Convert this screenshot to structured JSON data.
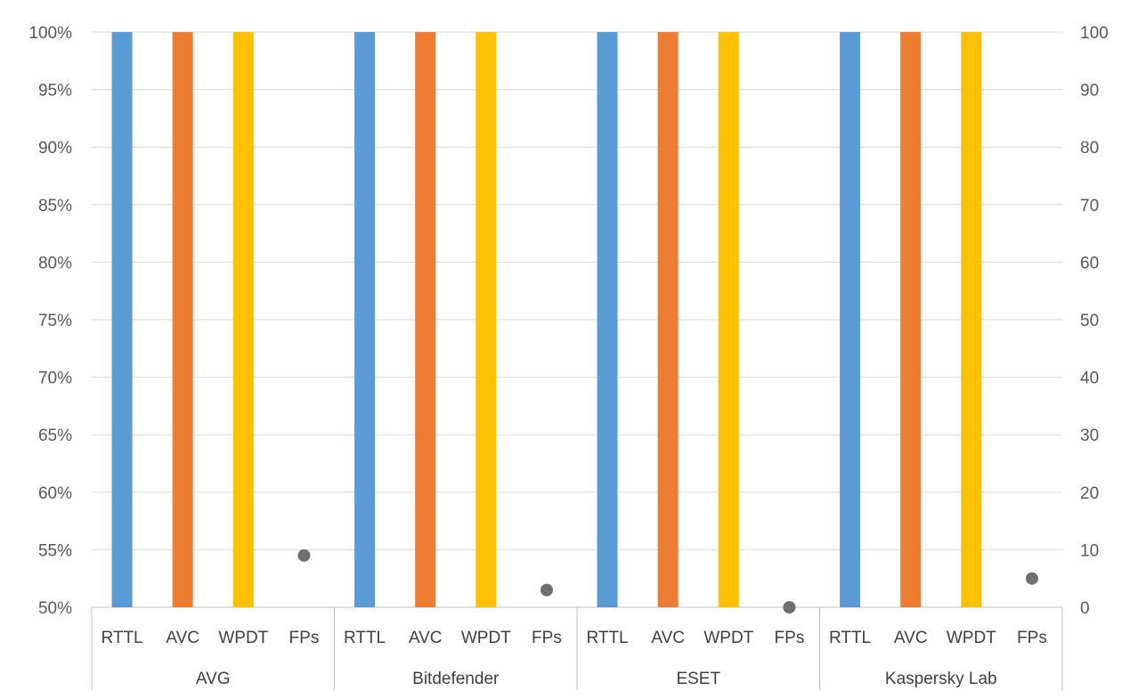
{
  "chart_data": {
    "type": "bar",
    "title": "",
    "xlabel": "",
    "ylabel": "",
    "groups": [
      "AVG",
      "Bitdefender",
      "ESET",
      "Kaspersky Lab"
    ],
    "categories": [
      "RTTL",
      "AVC",
      "WPDT",
      "FPs"
    ],
    "series": [
      {
        "category": "RTTL",
        "axis": "left",
        "kind": "bar",
        "color": "#5B9BD5",
        "values": [
          100,
          100,
          100,
          100
        ]
      },
      {
        "category": "AVC",
        "axis": "left",
        "kind": "bar",
        "color": "#ED7D31",
        "values": [
          100,
          100,
          100,
          100
        ]
      },
      {
        "category": "WPDT",
        "axis": "left",
        "kind": "bar",
        "color": "#FFC000",
        "values": [
          100,
          100,
          100,
          100
        ]
      },
      {
        "category": "FPs",
        "axis": "right",
        "kind": "scatter",
        "color": "#6E6E6E",
        "values": [
          9,
          3,
          0,
          5
        ]
      }
    ],
    "y_left": {
      "min": 50,
      "max": 100,
      "step": 5,
      "unit": "%",
      "tick_labels": [
        "50%",
        "55%",
        "60%",
        "65%",
        "70%",
        "75%",
        "80%",
        "85%",
        "90%",
        "95%",
        "100%"
      ]
    },
    "y_right": {
      "min": 0,
      "max": 100,
      "step": 10,
      "tick_labels": [
        "0",
        "10",
        "20",
        "30",
        "40",
        "50",
        "60",
        "70",
        "80",
        "90",
        "100"
      ]
    },
    "grid": true,
    "legend": "none",
    "colors": {
      "grid": "#D9D9D9",
      "axis": "#BFBFBF",
      "tick_text": "#595959"
    }
  }
}
